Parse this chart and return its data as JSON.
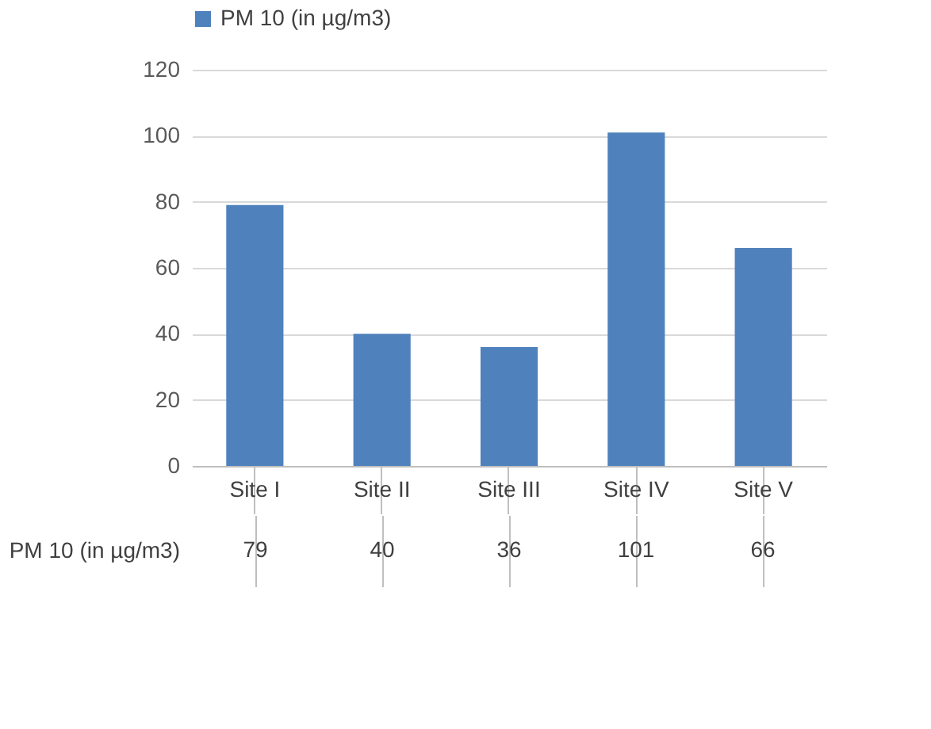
{
  "chart_data": {
    "type": "bar",
    "categories": [
      "Site I",
      "Site II",
      "Site III",
      "Site IV",
      "Site V"
    ],
    "series": [
      {
        "name": "PM 10 (in µg/m3)",
        "color": "#4f81bd",
        "values": [
          79,
          40,
          36,
          101,
          66
        ]
      }
    ],
    "ylim": [
      0,
      120
    ],
    "yticks": [
      0,
      20,
      40,
      60,
      80,
      100,
      120
    ],
    "grid": "y",
    "legend": "top",
    "data_labels": true
  }
}
